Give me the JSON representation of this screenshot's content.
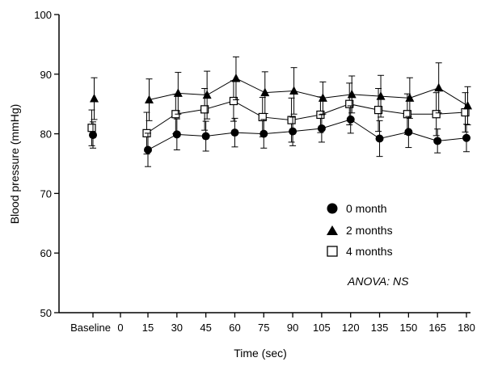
{
  "chart_data": {
    "type": "line",
    "xlabel": "Time (sec)",
    "ylabel": "Blood pressure (mmHg)",
    "ylim": [
      50,
      100
    ],
    "y_ticks": [
      50,
      60,
      70,
      80,
      90,
      100
    ],
    "x_categories": [
      "Baseline",
      "0",
      "15",
      "30",
      "45",
      "60",
      "75",
      "90",
      "105",
      "120",
      "135",
      "150",
      "165",
      "180"
    ],
    "x": [
      15,
      30,
      45,
      60,
      75,
      90,
      105,
      120,
      135,
      150,
      165,
      180
    ],
    "grid": false,
    "legend_position": "bottom-right",
    "annotation": "ANOVA: NS",
    "series": [
      {
        "name": "0 month",
        "marker": "filled-circle",
        "baseline": 79.8,
        "baseline_error": 2.2,
        "values": [
          77.3,
          79.9,
          79.6,
          80.2,
          80.0,
          80.4,
          80.9,
          82.4,
          79.2,
          80.3,
          78.8,
          79.3
        ],
        "errors": [
          2.8,
          2.6,
          2.5,
          2.4,
          2.4,
          2.4,
          2.3,
          2.3,
          3.0,
          2.6,
          2.0,
          2.3
        ]
      },
      {
        "name": "2 months",
        "marker": "filled-triangle",
        "baseline": 85.9,
        "baseline_error": 3.5,
        "values": [
          85.7,
          86.8,
          86.5,
          89.3,
          86.9,
          87.2,
          86.0,
          86.6,
          86.3,
          86.0,
          87.7,
          84.7
        ],
        "errors": [
          3.5,
          3.5,
          4.0,
          3.6,
          3.5,
          3.9,
          2.7,
          3.1,
          3.5,
          3.4,
          4.2,
          3.2
        ]
      },
      {
        "name": "4 months",
        "marker": "open-square",
        "baseline": 81.0,
        "baseline_error": 3.0,
        "values": [
          80.1,
          83.3,
          84.1,
          85.5,
          82.8,
          82.3,
          83.2,
          85.0,
          84.0,
          83.3,
          83.3,
          83.6
        ],
        "errors": [
          3.5,
          3.3,
          3.5,
          3.4,
          3.3,
          3.7,
          3.0,
          3.5,
          3.6,
          3.4,
          3.6,
          3.3
        ]
      }
    ]
  }
}
